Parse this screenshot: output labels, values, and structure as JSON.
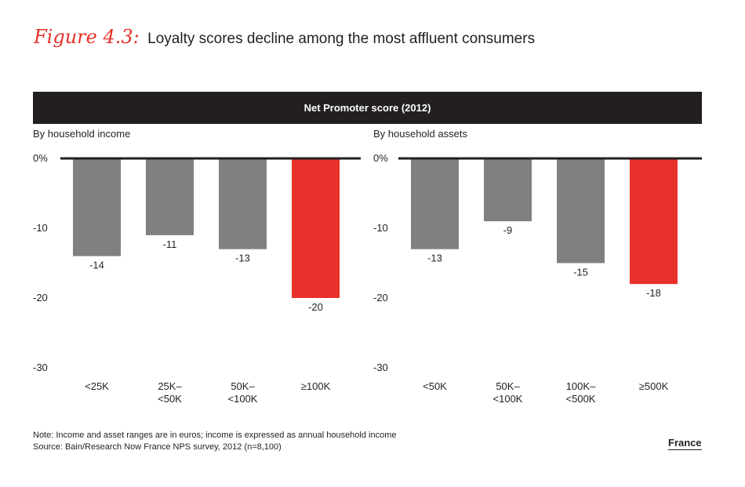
{
  "figure": {
    "label": "Figure 4.3:",
    "title": "Loyalty scores decline among the most affluent consumers"
  },
  "banner": "Net Promoter score (2012)",
  "colors": {
    "gray": "#808080",
    "highlight": "#e8312a",
    "text": "#231f20",
    "banner": "#231f20"
  },
  "chart_data": [
    {
      "type": "bar",
      "subtitle": "By household income",
      "categories": [
        [
          "<25K"
        ],
        [
          "25K–",
          "<50K"
        ],
        [
          "50K–",
          "<100K"
        ],
        [
          "≥100K"
        ]
      ],
      "values": [
        -14,
        -11,
        -13,
        -20
      ],
      "highlight_index": 3,
      "ylim": [
        -30,
        0
      ],
      "yticks": [
        0,
        -10,
        -20,
        -30
      ],
      "ytick_labels": [
        "0%",
        "-10",
        "-20",
        "-30"
      ]
    },
    {
      "type": "bar",
      "subtitle": "By household assets",
      "categories": [
        [
          "<50K"
        ],
        [
          "50K–",
          "<100K"
        ],
        [
          "100K–",
          "<500K"
        ],
        [
          "≥500K"
        ]
      ],
      "values": [
        -13,
        -9,
        -15,
        -18
      ],
      "highlight_index": 3,
      "ylim": [
        -30,
        0
      ],
      "yticks": [
        0,
        -10,
        -20,
        -30
      ],
      "ytick_labels": [
        "0%",
        "-10",
        "-20",
        "-30"
      ]
    }
  ],
  "notes": {
    "note": "Note: Income and asset ranges are in euros; income is expressed as annual household income",
    "source": "Source: Bain/Research Now France NPS survey, 2012 (n=8,100)"
  },
  "region": "France"
}
